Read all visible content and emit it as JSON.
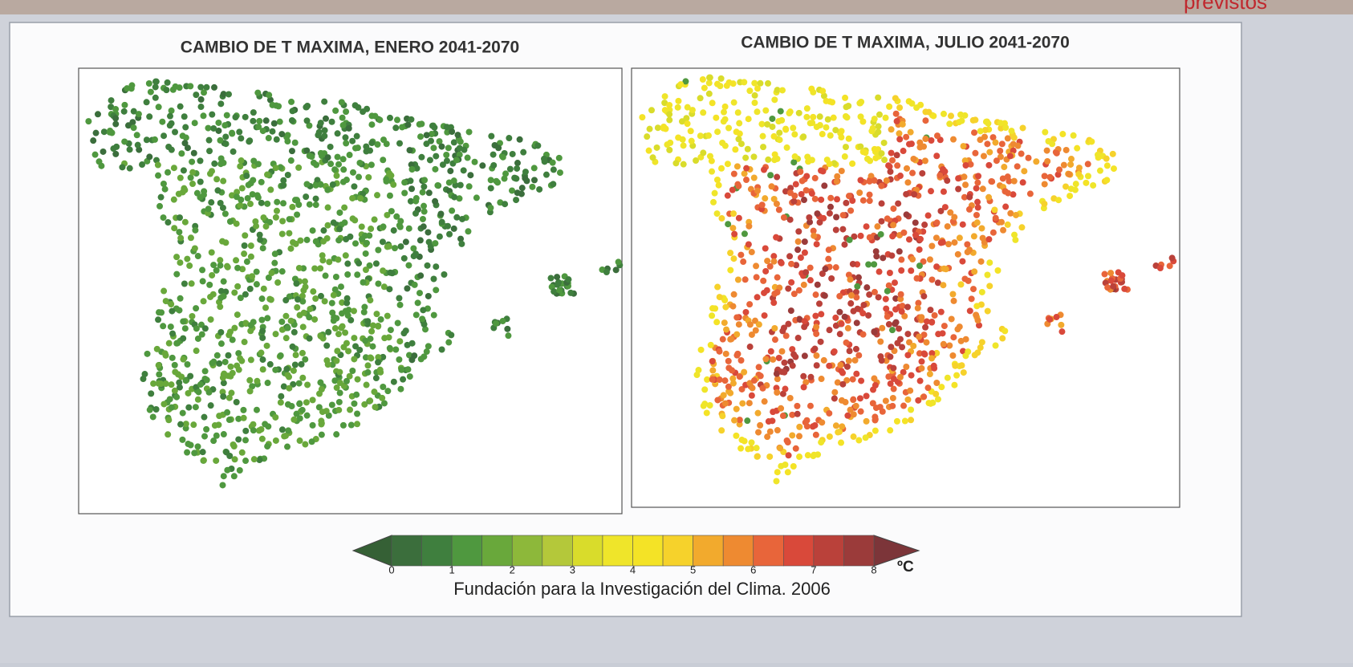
{
  "header": {
    "corner_text": "previstos"
  },
  "maps": [
    {
      "title": "CAMBIO DE T MAXIMA, ENERO 2041-2070"
    },
    {
      "title": "CAMBIO DE T MAXIMA, JULIO 2041-2070"
    }
  ],
  "colorbar": {
    "ticks": [
      0,
      1,
      2,
      3,
      4,
      5,
      6,
      7,
      8
    ],
    "unit": "ºC",
    "colors": [
      "#3b6e3c",
      "#3f7f3e",
      "#4f983f",
      "#69a83b",
      "#8db83a",
      "#b4c83a",
      "#d9dc2b",
      "#efe52a",
      "#f4e326",
      "#f6d22b",
      "#f2aa2d",
      "#ee8a31",
      "#e8653a",
      "#d9493a",
      "#ba413a",
      "#9b3b3a"
    ],
    "under_color": "#356035",
    "over_color": "#7c3539"
  },
  "credit": "Fundación para la Investigación del Clima. 2006"
}
